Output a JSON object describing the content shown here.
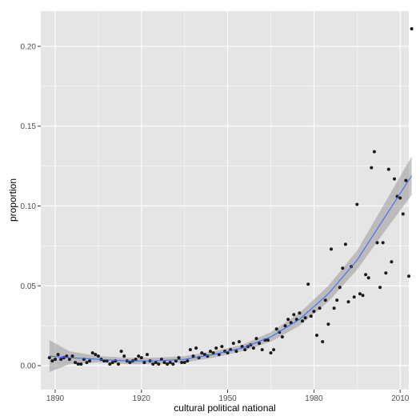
{
  "chart_data": {
    "type": "scatter",
    "xlabel": "cultural political national",
    "ylabel": "proportion",
    "xlim": [
      1885,
      2013
    ],
    "ylim": [
      -0.015,
      0.222
    ],
    "x_ticks": [
      1890,
      1920,
      1950,
      1980,
      2010
    ],
    "x_tick_labels": [
      "1890",
      "1920",
      "1950",
      "1980",
      "2010"
    ],
    "y_ticks": [
      0.0,
      0.05,
      0.1,
      0.15,
      0.2
    ],
    "y_tick_labels": [
      "0.00",
      "0.05",
      "0.10",
      "0.15",
      "0.20"
    ],
    "grid": true,
    "colors": {
      "panel": "#e5e5e5",
      "grid": "#ffffff",
      "point": "#1a1a1a",
      "smooth_line": "#3366ff",
      "band": "#999999"
    },
    "points": [
      [
        1888,
        0.005
      ],
      [
        1889,
        0.003
      ],
      [
        1890,
        0.004
      ],
      [
        1891,
        0.007
      ],
      [
        1892,
        0.004
      ],
      [
        1893,
        0.005
      ],
      [
        1894,
        0.006
      ],
      [
        1895,
        0.004
      ],
      [
        1896,
        0.006
      ],
      [
        1897,
        0.002
      ],
      [
        1898,
        0.001
      ],
      [
        1899,
        0.001
      ],
      [
        1900,
        0.004
      ],
      [
        1901,
        0.002
      ],
      [
        1902,
        0.003
      ],
      [
        1903,
        0.008
      ],
      [
        1904,
        0.007
      ],
      [
        1905,
        0.006
      ],
      [
        1906,
        0.004
      ],
      [
        1907,
        0.003
      ],
      [
        1908,
        0.003
      ],
      [
        1909,
        0.001
      ],
      [
        1910,
        0.002
      ],
      [
        1911,
        0.003
      ],
      [
        1912,
        0.001
      ],
      [
        1913,
        0.009
      ],
      [
        1914,
        0.006
      ],
      [
        1915,
        0.003
      ],
      [
        1916,
        0.002
      ],
      [
        1917,
        0.003
      ],
      [
        1918,
        0.004
      ],
      [
        1919,
        0.006
      ],
      [
        1920,
        0.005
      ],
      [
        1921,
        0.002
      ],
      [
        1922,
        0.007
      ],
      [
        1923,
        0.003
      ],
      [
        1924,
        0.001
      ],
      [
        1925,
        0.002
      ],
      [
        1926,
        0.001
      ],
      [
        1927,
        0.004
      ],
      [
        1928,
        0.002
      ],
      [
        1929,
        0.001
      ],
      [
        1930,
        0.002
      ],
      [
        1931,
        0.001
      ],
      [
        1932,
        0.003
      ],
      [
        1933,
        0.005
      ],
      [
        1934,
        0.002
      ],
      [
        1935,
        0.002
      ],
      [
        1936,
        0.003
      ],
      [
        1937,
        0.01
      ],
      [
        1938,
        0.006
      ],
      [
        1939,
        0.011
      ],
      [
        1940,
        0.005
      ],
      [
        1941,
        0.008
      ],
      [
        1942,
        0.007
      ],
      [
        1943,
        0.006
      ],
      [
        1944,
        0.009
      ],
      [
        1945,
        0.008
      ],
      [
        1946,
        0.011
      ],
      [
        1947,
        0.007
      ],
      [
        1948,
        0.012
      ],
      [
        1949,
        0.009
      ],
      [
        1950,
        0.008
      ],
      [
        1951,
        0.01
      ],
      [
        1952,
        0.014
      ],
      [
        1953,
        0.009
      ],
      [
        1954,
        0.015
      ],
      [
        1955,
        0.012
      ],
      [
        1956,
        0.01
      ],
      [
        1957,
        0.012
      ],
      [
        1958,
        0.013
      ],
      [
        1959,
        0.011
      ],
      [
        1960,
        0.017
      ],
      [
        1961,
        0.014
      ],
      [
        1962,
        0.01
      ],
      [
        1963,
        0.016
      ],
      [
        1964,
        0.016
      ],
      [
        1965,
        0.008
      ],
      [
        1966,
        0.01
      ],
      [
        1967,
        0.023
      ],
      [
        1968,
        0.021
      ],
      [
        1969,
        0.018
      ],
      [
        1970,
        0.025
      ],
      [
        1971,
        0.029
      ],
      [
        1972,
        0.027
      ],
      [
        1973,
        0.032
      ],
      [
        1974,
        0.029
      ],
      [
        1975,
        0.033
      ],
      [
        1976,
        0.028
      ],
      [
        1977,
        0.03
      ],
      [
        1978,
        0.051
      ],
      [
        1979,
        0.031
      ],
      [
        1980,
        0.034
      ],
      [
        1981,
        0.019
      ],
      [
        1982,
        0.036
      ],
      [
        1983,
        0.015
      ],
      [
        1984,
        0.041
      ],
      [
        1985,
        0.026
      ],
      [
        1986,
        0.073
      ],
      [
        1987,
        0.036
      ],
      [
        1988,
        0.041
      ],
      [
        1989,
        0.049
      ],
      [
        1990,
        0.061
      ],
      [
        1991,
        0.076
      ],
      [
        1992,
        0.04
      ],
      [
        1993,
        0.062
      ],
      [
        1994,
        0.043
      ],
      [
        1995,
        0.101
      ],
      [
        1996,
        0.045
      ],
      [
        1997,
        0.044
      ],
      [
        1998,
        0.057
      ],
      [
        1999,
        0.055
      ],
      [
        2000,
        0.124
      ],
      [
        2001,
        0.134
      ],
      [
        2002,
        0.077
      ],
      [
        2003,
        0.049
      ],
      [
        2004,
        0.077
      ],
      [
        2005,
        0.058
      ],
      [
        2006,
        0.123
      ],
      [
        2007,
        0.065
      ],
      [
        2008,
        0.117
      ],
      [
        2009,
        0.106
      ],
      [
        2010,
        0.105
      ],
      [
        2011,
        0.095
      ],
      [
        2012,
        0.116
      ],
      [
        2013,
        0.056
      ],
      [
        2014,
        0.211
      ]
    ],
    "smooth": {
      "x": [
        1888,
        1895,
        1905,
        1915,
        1925,
        1935,
        1945,
        1955,
        1965,
        1975,
        1985,
        1995,
        2005,
        2014
      ],
      "y": [
        0.006,
        0.005,
        0.004,
        0.003,
        0.003,
        0.004,
        0.007,
        0.011,
        0.018,
        0.029,
        0.045,
        0.066,
        0.094,
        0.119
      ],
      "lower": [
        -0.004,
        0.001,
        0.002,
        0.001,
        0.001,
        0.002,
        0.005,
        0.009,
        0.015,
        0.025,
        0.04,
        0.06,
        0.085,
        0.107
      ],
      "upper": [
        0.016,
        0.009,
        0.006,
        0.005,
        0.005,
        0.006,
        0.009,
        0.013,
        0.021,
        0.033,
        0.05,
        0.072,
        0.103,
        0.131
      ]
    }
  }
}
